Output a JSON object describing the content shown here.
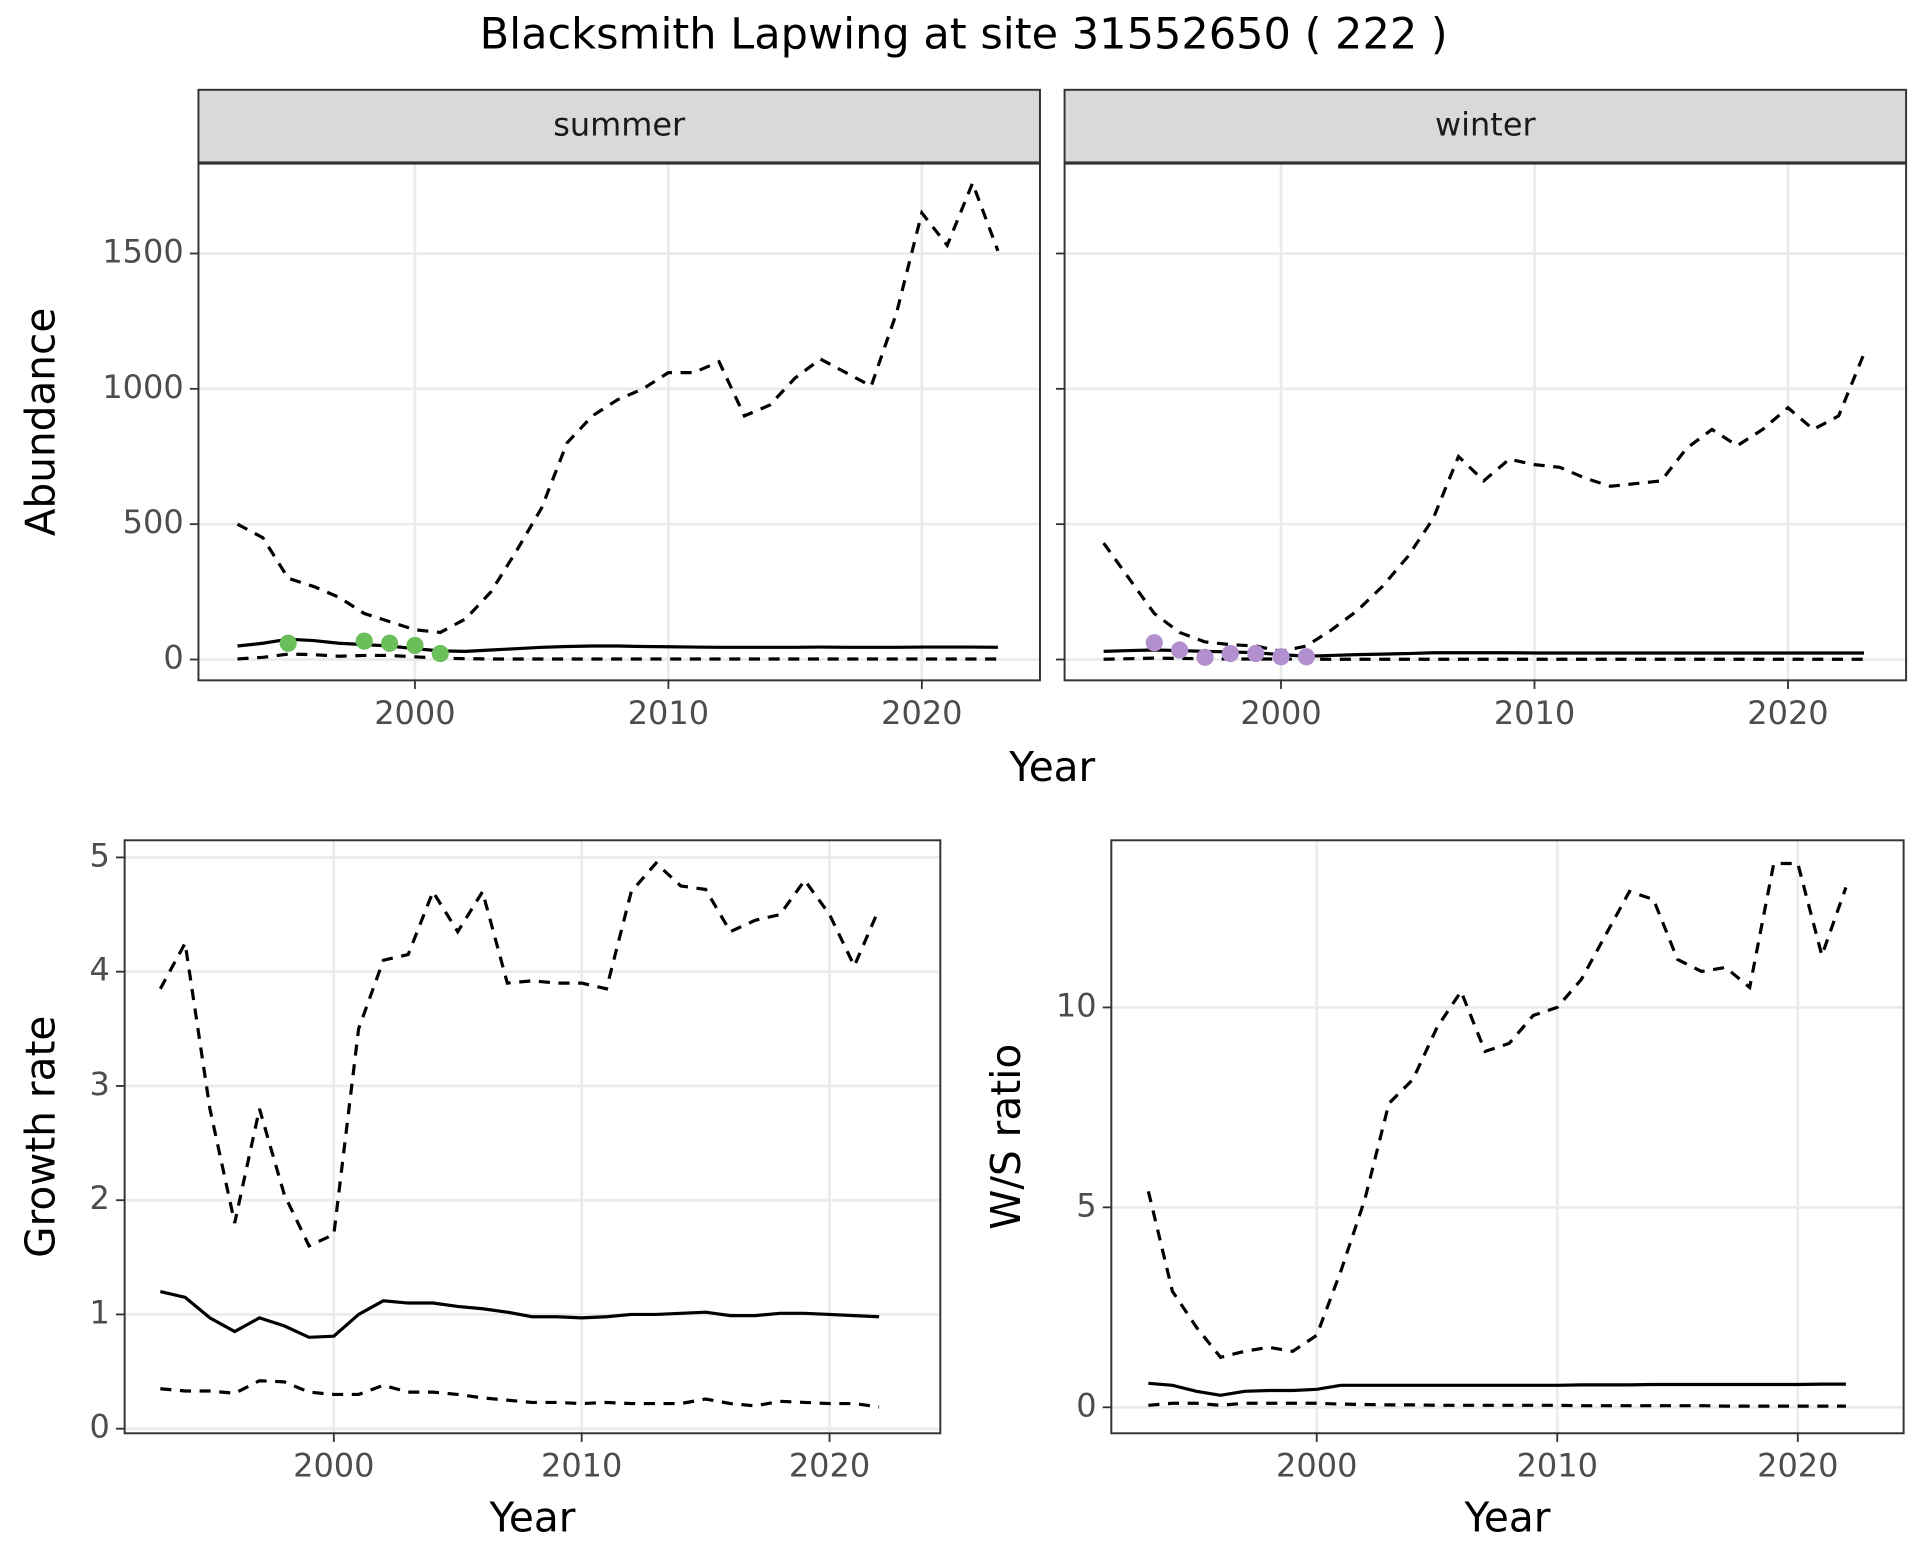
{
  "chart_data": [
    {
      "type": "line",
      "title": "Blacksmith Lapwing at site 31552650 ( 222 )",
      "x_label": "Year",
      "y_label": "Abundance",
      "x": [
        1993,
        1994,
        1995,
        1996,
        1997,
        1998,
        1999,
        2000,
        2001,
        2002,
        2003,
        2004,
        2005,
        2006,
        2007,
        2008,
        2009,
        2010,
        2011,
        2012,
        2013,
        2014,
        2015,
        2016,
        2017,
        2018,
        2019,
        2020,
        2021,
        2022,
        2023
      ],
      "xlim": [
        1991.46,
        2024.66
      ],
      "xticks": [
        2000,
        2010,
        2020
      ],
      "ylim": [
        -77,
        1832
      ],
      "yticks": [
        0,
        500,
        1000,
        1500
      ],
      "grid": true,
      "facets": [
        {
          "label": "summer",
          "series": [
            {
              "style": "dashed",
              "color": "#000000",
              "values": [
                500,
                450,
                300,
                270,
                230,
                170,
                140,
                110,
                100,
                150,
                250,
                400,
                560,
                800,
                900,
                960,
                1000,
                1060,
                1060,
                1100,
                900,
                940,
                1040,
                1110,
                1060,
                1010,
                1280,
                1650,
                1530,
                1760,
                1510
              ]
            },
            {
              "style": "solid",
              "color": "#000000",
              "values": [
                50,
                60,
                75,
                70,
                60,
                55,
                50,
                40,
                32,
                30,
                35,
                40,
                45,
                48,
                50,
                50,
                48,
                47,
                46,
                45,
                45,
                45,
                45,
                46,
                45,
                45,
                45,
                46,
                46,
                46,
                45
              ]
            },
            {
              "style": "dashed",
              "color": "#000000",
              "values": [
                2,
                8,
                20,
                18,
                12,
                15,
                15,
                10,
                5,
                3,
                2,
                2,
                2,
                2,
                2,
                2,
                2,
                2,
                2,
                2,
                2,
                2,
                2,
                2,
                2,
                2,
                2,
                2,
                2,
                2,
                2
              ]
            },
            {
              "style": "points",
              "color": "#6abf5a",
              "x": [
                1995,
                1998,
                1999,
                2000,
                2001
              ],
              "values": [
                60,
                68,
                60,
                52,
                22
              ]
            }
          ]
        },
        {
          "label": "winter",
          "series": [
            {
              "style": "dashed",
              "color": "#000000",
              "values": [
                430,
                300,
                170,
                100,
                65,
                55,
                50,
                30,
                50,
                110,
                180,
                270,
                380,
                520,
                750,
                660,
                740,
                720,
                710,
                670,
                640,
                650,
                660,
                780,
                850,
                790,
                850,
                930,
                850,
                900,
                1130
              ]
            },
            {
              "style": "solid",
              "color": "#000000",
              "values": [
                30,
                33,
                35,
                33,
                30,
                28,
                25,
                18,
                12,
                15,
                18,
                20,
                22,
                25,
                25,
                25,
                25,
                24,
                24,
                24,
                24,
                24,
                24,
                24,
                24,
                24,
                24,
                24,
                24,
                24,
                24
              ]
            },
            {
              "style": "dashed",
              "color": "#000000",
              "values": [
                1,
                3,
                5,
                4,
                3,
                2,
                2,
                2,
                1,
                1,
                1,
                1,
                1,
                1,
                1,
                1,
                1,
                1,
                1,
                1,
                1,
                1,
                1,
                1,
                1,
                1,
                1,
                1,
                1,
                1,
                1
              ]
            },
            {
              "style": "points",
              "color": "#b28fce",
              "x": [
                1995,
                1996,
                1997,
                1998,
                1999,
                2000,
                2001
              ],
              "values": [
                62,
                35,
                8,
                22,
                22,
                10,
                10
              ]
            }
          ]
        }
      ]
    },
    {
      "type": "line",
      "x_label": "Year",
      "y_label": "Growth rate",
      "x": [
        1993,
        1994,
        1995,
        1996,
        1997,
        1998,
        1999,
        2000,
        2001,
        2002,
        2003,
        2004,
        2005,
        2006,
        2007,
        2008,
        2009,
        2010,
        2011,
        2012,
        2013,
        2014,
        2015,
        2016,
        2017,
        2018,
        2019,
        2020,
        2021,
        2022
      ],
      "xlim": [
        1991.56,
        2024.47
      ],
      "xticks": [
        2000,
        2010,
        2020
      ],
      "ylim": [
        -0.04,
        5.15
      ],
      "yticks": [
        0,
        1,
        2,
        3,
        4,
        5
      ],
      "grid": true,
      "series": [
        {
          "style": "dashed",
          "color": "#000000",
          "values": [
            3.85,
            4.25,
            2.8,
            1.8,
            2.8,
            2.05,
            1.6,
            1.7,
            3.5,
            4.1,
            4.15,
            4.7,
            4.35,
            4.7,
            3.9,
            3.92,
            3.9,
            3.9,
            3.85,
            4.7,
            4.95,
            4.75,
            4.72,
            4.35,
            4.45,
            4.5,
            4.8,
            4.5,
            4.05,
            4.55
          ]
        },
        {
          "style": "solid",
          "color": "#000000",
          "values": [
            1.2,
            1.15,
            0.97,
            0.85,
            0.97,
            0.9,
            0.8,
            0.81,
            1.0,
            1.12,
            1.1,
            1.1,
            1.07,
            1.05,
            1.02,
            0.98,
            0.98,
            0.97,
            0.98,
            1.0,
            1.0,
            1.01,
            1.02,
            0.99,
            0.99,
            1.01,
            1.01,
            1.0,
            0.99,
            0.98
          ]
        },
        {
          "style": "dashed",
          "color": "#000000",
          "values": [
            0.35,
            0.33,
            0.33,
            0.31,
            0.42,
            0.41,
            0.32,
            0.3,
            0.3,
            0.38,
            0.32,
            0.32,
            0.3,
            0.27,
            0.25,
            0.23,
            0.23,
            0.22,
            0.23,
            0.22,
            0.22,
            0.22,
            0.26,
            0.22,
            0.2,
            0.24,
            0.23,
            0.22,
            0.22,
            0.19
          ]
        }
      ]
    },
    {
      "type": "line",
      "x_label": "Year",
      "y_label": "W/S ratio",
      "x": [
        1993,
        1994,
        1995,
        1996,
        1997,
        1998,
        1999,
        2000,
        2001,
        2002,
        2003,
        2004,
        2005,
        2006,
        2007,
        2008,
        2009,
        2010,
        2011,
        2012,
        2013,
        2014,
        2015,
        2016,
        2017,
        2018,
        2019,
        2020,
        2021,
        2022
      ],
      "xlim": [
        1991.46,
        2024.4
      ],
      "xticks": [
        2000,
        2010,
        2020
      ],
      "ylim": [
        -0.65,
        14.18
      ],
      "yticks": [
        0,
        5,
        10
      ],
      "grid": true,
      "series": [
        {
          "style": "dashed",
          "color": "#000000",
          "values": [
            5.4,
            2.9,
            2.0,
            1.25,
            1.4,
            1.5,
            1.4,
            1.8,
            3.4,
            5.2,
            7.6,
            8.2,
            9.5,
            10.4,
            8.9,
            9.1,
            9.8,
            10.0,
            10.7,
            11.8,
            12.9,
            12.7,
            11.2,
            10.9,
            11.0,
            10.5,
            13.6,
            13.6,
            11.3,
            13.0
          ]
        },
        {
          "style": "solid",
          "color": "#000000",
          "values": [
            0.6,
            0.55,
            0.4,
            0.3,
            0.4,
            0.42,
            0.42,
            0.45,
            0.55,
            0.55,
            0.55,
            0.55,
            0.55,
            0.55,
            0.55,
            0.55,
            0.55,
            0.55,
            0.56,
            0.56,
            0.56,
            0.57,
            0.57,
            0.57,
            0.57,
            0.57,
            0.57,
            0.57,
            0.58,
            0.58
          ]
        },
        {
          "style": "dashed",
          "color": "#000000",
          "values": [
            0.05,
            0.1,
            0.1,
            0.05,
            0.1,
            0.1,
            0.1,
            0.1,
            0.08,
            0.07,
            0.06,
            0.06,
            0.05,
            0.05,
            0.05,
            0.05,
            0.05,
            0.05,
            0.04,
            0.04,
            0.04,
            0.04,
            0.04,
            0.04,
            0.03,
            0.03,
            0.03,
            0.03,
            0.03,
            0.03
          ]
        }
      ]
    }
  ]
}
